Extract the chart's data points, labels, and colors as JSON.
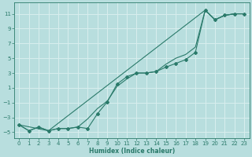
{
  "xlabel": "Humidex (Indice chaleur)",
  "bg_color": "#b8dede",
  "grid_color": "#d8eeee",
  "line_color": "#2a7a6a",
  "xlim": [
    -0.5,
    23.5
  ],
  "ylim": [
    -5.8,
    12.5
  ],
  "yticks": [
    -5,
    -3,
    -1,
    1,
    3,
    5,
    7,
    9,
    11
  ],
  "xticks": [
    0,
    1,
    2,
    3,
    4,
    5,
    6,
    7,
    8,
    9,
    10,
    11,
    12,
    13,
    14,
    15,
    16,
    17,
    18,
    19,
    20,
    21,
    22,
    23
  ],
  "line_upper_x": [
    0,
    1,
    2,
    3,
    4,
    5,
    6,
    7,
    8,
    9,
    10,
    11,
    12,
    13,
    14,
    15,
    16,
    17,
    18,
    19,
    20,
    21,
    22,
    23
  ],
  "line_upper_y": [
    -4.0,
    -4.8,
    -4.3,
    -4.8,
    -4.5,
    -4.5,
    -4.3,
    -3.2,
    -1.8,
    -0.8,
    1.2,
    2.2,
    3.0,
    3.0,
    3.2,
    4.2,
    5.0,
    5.5,
    6.5,
    11.5,
    10.2,
    10.8,
    11.0,
    11.0
  ],
  "line_lower_x": [
    0,
    3,
    19,
    20,
    21,
    22,
    23
  ],
  "line_lower_y": [
    -4.0,
    -4.8,
    11.5,
    10.2,
    10.8,
    11.0,
    11.0
  ],
  "line_mid_x": [
    0,
    1,
    2,
    3,
    4,
    5,
    6,
    7,
    8,
    9,
    10,
    11,
    12,
    13,
    14,
    15,
    16,
    17,
    18,
    19,
    20,
    21,
    22,
    23
  ],
  "line_mid_y": [
    -4.0,
    -4.8,
    -4.3,
    -4.8,
    -4.5,
    -4.5,
    -4.3,
    -4.5,
    -2.5,
    -0.9,
    1.5,
    2.5,
    3.0,
    3.0,
    3.2,
    3.8,
    4.3,
    4.8,
    5.8,
    11.5,
    10.2,
    10.8,
    11.0,
    11.0
  ]
}
